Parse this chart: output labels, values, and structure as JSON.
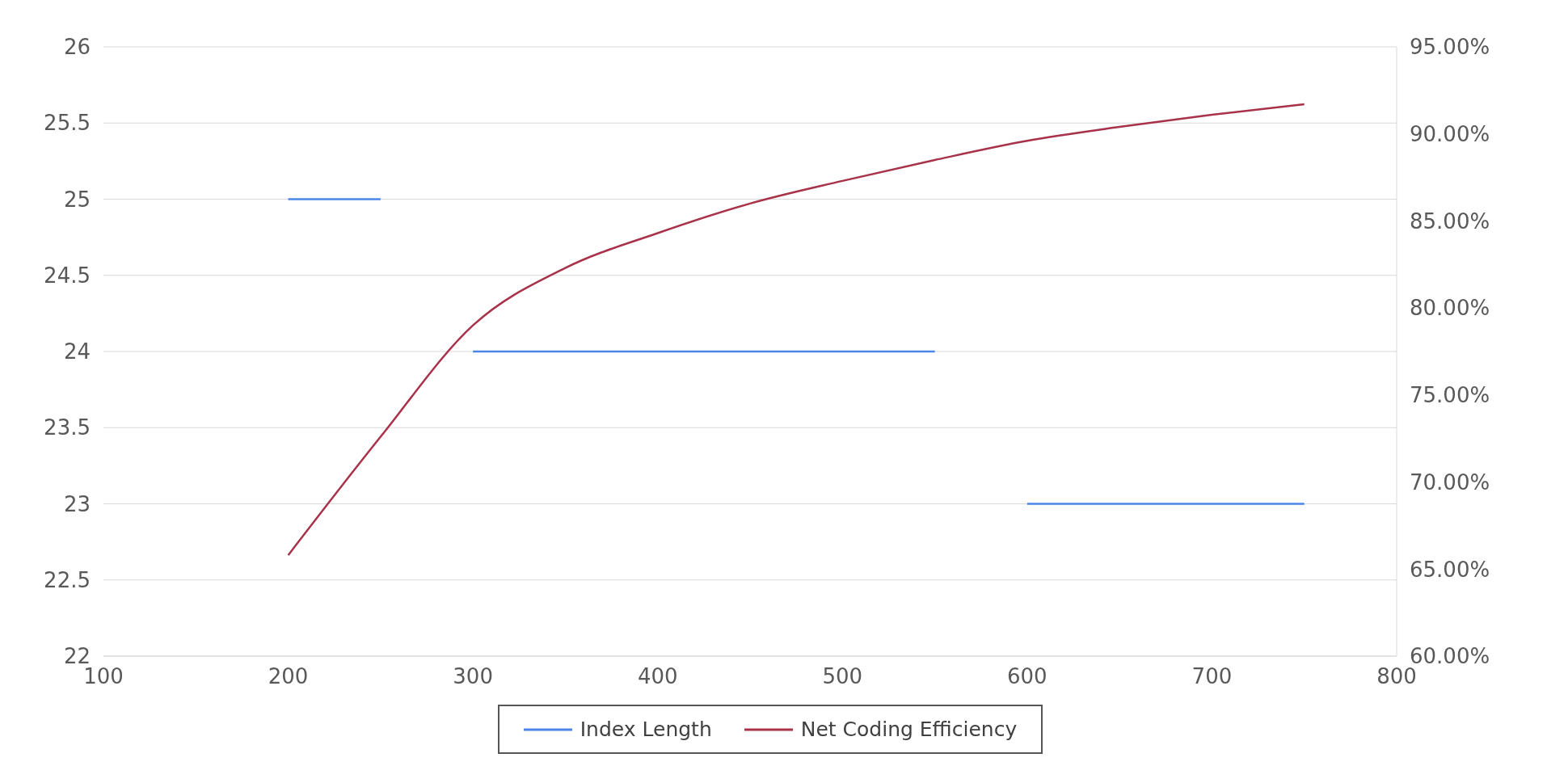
{
  "chart_data": {
    "type": "line",
    "xlim": [
      100,
      800
    ],
    "xticks": [
      100,
      200,
      300,
      400,
      500,
      600,
      700,
      800
    ],
    "ylim": [
      22,
      26
    ],
    "yticks": [
      22,
      22.5,
      23,
      23.5,
      24,
      24.5,
      25,
      25.5,
      26
    ],
    "y2lim": [
      60,
      95
    ],
    "y2ticks": [
      {
        "value": 60,
        "label": "60.00%"
      },
      {
        "value": 65,
        "label": "65.00%"
      },
      {
        "value": 70,
        "label": "70.00%"
      },
      {
        "value": 75,
        "label": "75.00%"
      },
      {
        "value": 80,
        "label": "80.00%"
      },
      {
        "value": 85,
        "label": "85.00%"
      },
      {
        "value": 90,
        "label": "90.00%"
      },
      {
        "value": 95,
        "label": "95.00%"
      }
    ],
    "grid": "y",
    "legend": "bottom",
    "marker": "none",
    "line_style": "solid",
    "series": [
      {
        "name": "Index Length",
        "color": "#4a86e8",
        "x": [
          200,
          250,
          275,
          300,
          550,
          575,
          600,
          750
        ],
        "values": [
          25,
          25,
          null,
          24,
          24,
          null,
          23,
          23
        ]
      },
      {
        "name": "Net Coding Efficiency",
        "color": "#a8324a",
        "axis": "y2",
        "x": [
          200,
          250,
          300,
          350,
          400,
          450,
          500,
          550,
          600,
          650,
          700,
          750
        ],
        "values": [
          65.8,
          72.6,
          79.0,
          82.3,
          84.3,
          86.0,
          87.3,
          88.5,
          89.6,
          90.4,
          91.1,
          91.7
        ]
      }
    ]
  }
}
